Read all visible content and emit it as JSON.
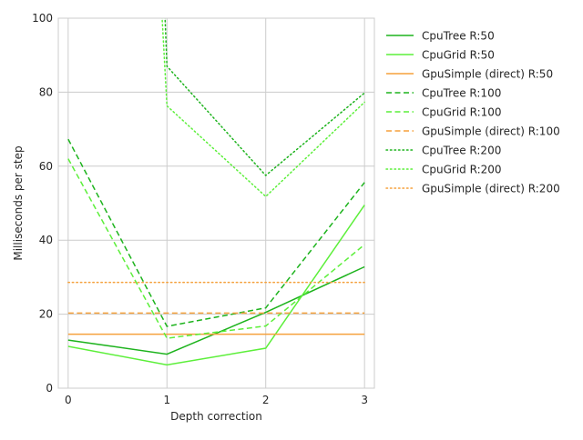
{
  "chart_data": {
    "type": "line",
    "title": "",
    "xlabel": "Depth correction",
    "ylabel": "Milliseconds per step",
    "x": [
      0,
      1,
      2,
      3
    ],
    "xticks": [
      "0",
      "1",
      "2",
      "3"
    ],
    "yticks": [
      "0",
      "20",
      "40",
      "60",
      "80",
      "100"
    ],
    "ylim": [
      0,
      100
    ],
    "xlim": [
      -0.1,
      3.1
    ],
    "grid": true,
    "legend_position": "outside-right",
    "series": [
      {
        "name": "CpuTree R:50",
        "values": [
          13,
          9.2,
          20.5,
          32.8
        ],
        "color": "#1db31d",
        "dash": "solid"
      },
      {
        "name": "CpuGrid R:50",
        "values": [
          11.3,
          6.3,
          10.8,
          49.5
        ],
        "color": "#5cef3a",
        "dash": "solid"
      },
      {
        "name": "GpuSimple (direct) R:50",
        "values": [
          14.6,
          14.6,
          14.6,
          14.6
        ],
        "color": "#f5a13c",
        "dash": "solid"
      },
      {
        "name": "CpuTree R:100",
        "values": [
          67.3,
          16.7,
          21.7,
          55.6
        ],
        "color": "#1db31d",
        "dash": "dashed"
      },
      {
        "name": "CpuGrid R:100",
        "values": [
          62,
          13.5,
          16.8,
          38.8
        ],
        "color": "#5cef3a",
        "dash": "dashed"
      },
      {
        "name": "GpuSimple (direct) R:100",
        "values": [
          20.3,
          20.3,
          20.3,
          20.3
        ],
        "color": "#f5a13c",
        "dash": "dashed"
      },
      {
        "name": "CpuTree R:200",
        "values": [
          null,
          87,
          57.5,
          79.8
        ],
        "color": "#1db31d",
        "dash": "dotted",
        "enter_top_x": 0.98
      },
      {
        "name": "CpuGrid R:200",
        "values": [
          null,
          76.3,
          51.8,
          77.3
        ],
        "color": "#5cef3a",
        "dash": "dotted",
        "enter_top_x": 0.95
      },
      {
        "name": "GpuSimple (direct) R:200",
        "values": [
          28.6,
          28.6,
          28.6,
          28.6
        ],
        "color": "#f5a13c",
        "dash": "dotted"
      }
    ]
  }
}
